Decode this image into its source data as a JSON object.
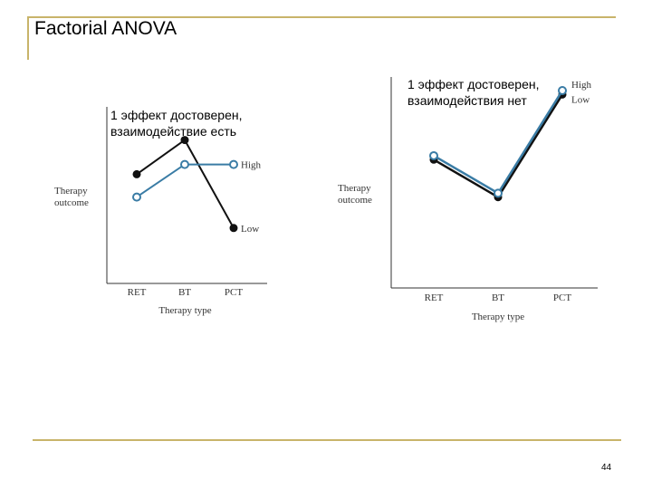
{
  "slide": {
    "title": "Factorial ANOVA",
    "page_number": "44",
    "accent_color": "#c8b46a"
  },
  "chart_data": [
    {
      "type": "line",
      "caption": "1 эффект достоверен, взаимодействие есть",
      "caption_lines": [
        "1 эффект достоверен,",
        "взаимодействие есть"
      ],
      "xlabel": "Therapy type",
      "ylabel_lines": [
        "Therapy",
        "outcome"
      ],
      "categories": [
        "RET",
        "BT",
        "PCT"
      ],
      "ylim": [
        0,
        10
      ],
      "series": [
        {
          "name": "High",
          "values": [
            5.3,
            7.3,
            7.3
          ],
          "color": "#3a7ca5",
          "marker": "open-circle"
        },
        {
          "name": "Low",
          "values": [
            6.7,
            8.8,
            3.4
          ],
          "color": "#111111",
          "marker": "filled-circle"
        }
      ]
    },
    {
      "type": "line",
      "caption": "1 эффект достоверен, взаимодействия нет",
      "caption_lines": [
        "1 эффект достоверен,",
        "взаимодействия нет"
      ],
      "xlabel": "Therapy type",
      "ylabel_lines": [
        "Therapy",
        "outcome"
      ],
      "categories": [
        "RET",
        "BT",
        "PCT"
      ],
      "ylim": [
        0,
        10
      ],
      "series": [
        {
          "name": "High",
          "values": [
            6.7,
            4.8,
            10.0
          ],
          "color": "#3a7ca5",
          "marker": "open-circle"
        },
        {
          "name": "Low",
          "values": [
            6.5,
            4.6,
            9.8
          ],
          "color": "#111111",
          "marker": "filled-circle"
        }
      ]
    }
  ]
}
